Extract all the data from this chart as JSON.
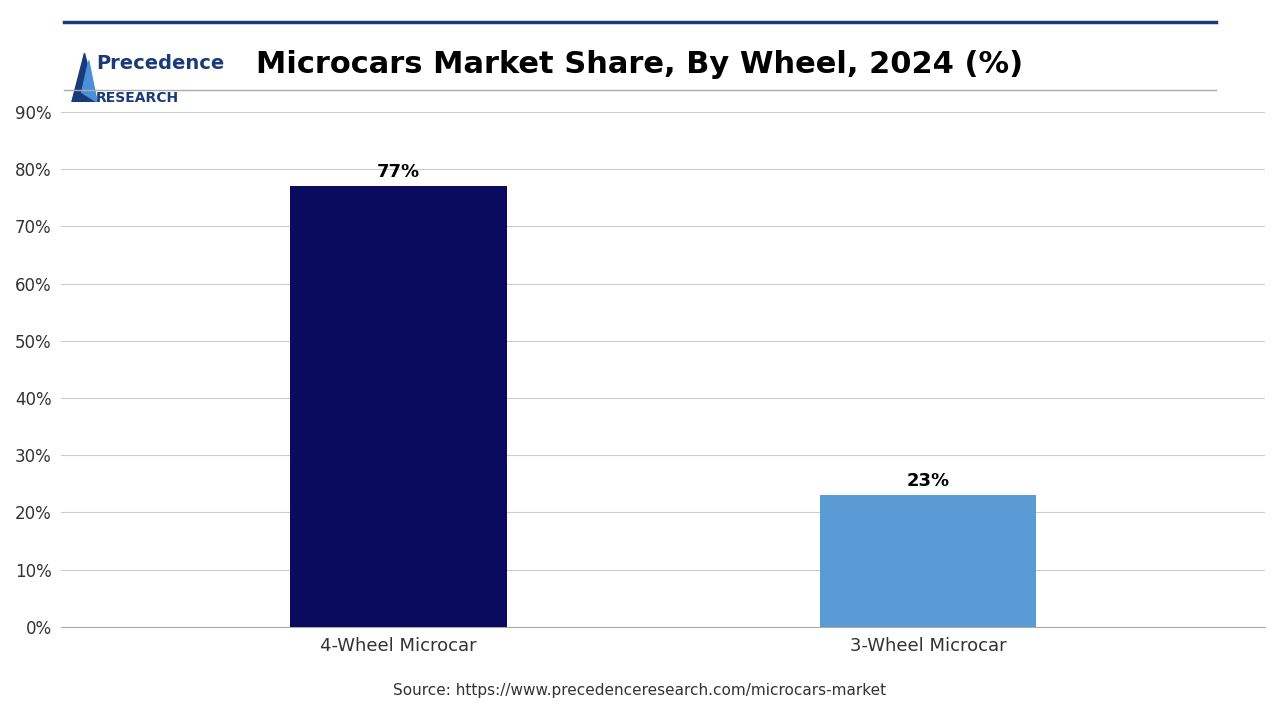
{
  "title": "Microcars Market Share, By Wheel, 2024 (%)",
  "categories": [
    "4-Wheel Microcar",
    "3-Wheel Microcar"
  ],
  "values": [
    77,
    23
  ],
  "bar_colors": [
    "#0a0a5e",
    "#5b9bd5"
  ],
  "bar_labels": [
    "77%",
    "23%"
  ],
  "ylim": [
    0,
    90
  ],
  "yticks": [
    0,
    10,
    20,
    30,
    40,
    50,
    60,
    70,
    80,
    90
  ],
  "ytick_labels": [
    "0%",
    "10%",
    "20%",
    "30%",
    "40%",
    "50%",
    "60%",
    "70%",
    "80%",
    "90%"
  ],
  "source_text": "Source: https://www.precedenceresearch.com/microcars-market",
  "title_fontsize": 22,
  "label_fontsize": 13,
  "tick_fontsize": 12,
  "bar_label_fontsize": 13,
  "source_fontsize": 11,
  "background_color": "#ffffff",
  "grid_color": "#cccccc",
  "logo_color": "#1a3a7a",
  "logo_accent_color": "#4a90d9"
}
